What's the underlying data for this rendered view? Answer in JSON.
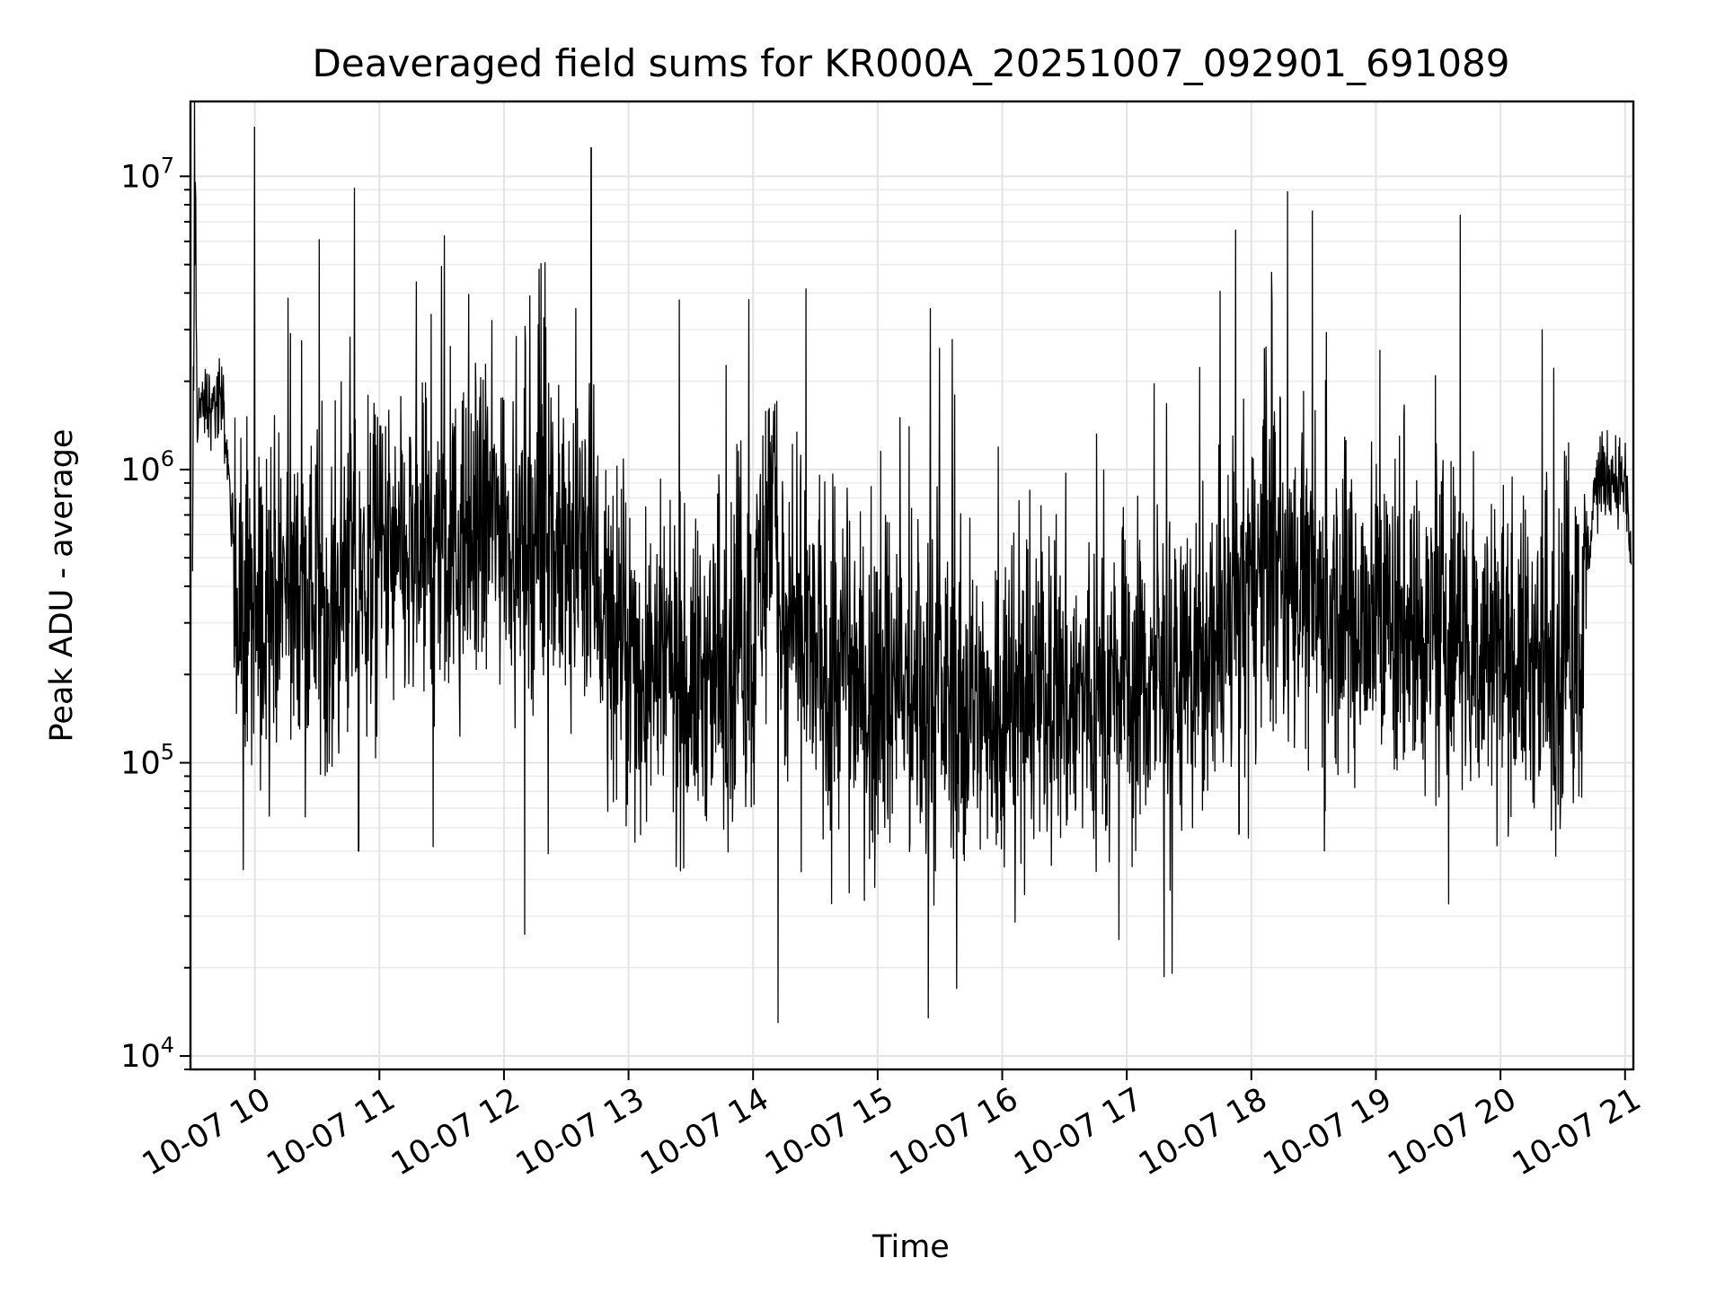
{
  "chart_data": {
    "type": "line",
    "title": "Deaveraged field sums for KR000A_20251007_092901_691089",
    "xlabel": "Time",
    "ylabel": "Peak ADU - average",
    "yscale": "log",
    "ylim": [
      9000,
      18000000
    ],
    "xlim": [
      "2025-10-07 09:29",
      "2025-10-07 21:04"
    ],
    "grid": true,
    "x_ticks": [
      "10-07 10",
      "10-07 11",
      "10-07 12",
      "10-07 13",
      "10-07 14",
      "10-07 15",
      "10-07 16",
      "10-07 17",
      "10-07 18",
      "10-07 19",
      "10-07 20",
      "10-07 21"
    ],
    "y_ticks": [
      {
        "base": "10",
        "exp": "4",
        "value": 10000
      },
      {
        "base": "10",
        "exp": "5",
        "value": 100000
      },
      {
        "base": "10",
        "exp": "6",
        "value": 1000000
      },
      {
        "base": "10",
        "exp": "7",
        "value": 10000000
      }
    ],
    "color": "#000000",
    "series": [
      {
        "x": [
          "2025-10-07 09:30",
          "2025-10-07 09:31",
          "2025-10-07 09:32",
          "2025-10-07 09:40",
          "2025-10-07 09:45",
          "2025-10-07 09:50",
          "2025-10-07 09:55",
          "2025-10-07 10:00",
          "2025-10-07 10:10",
          "2025-10-07 10:20",
          "2025-10-07 10:30",
          "2025-10-07 10:40",
          "2025-10-07 10:50",
          "2025-10-07 11:00",
          "2025-10-07 11:10",
          "2025-10-07 11:20",
          "2025-10-07 11:30",
          "2025-10-07 11:40",
          "2025-10-07 11:50",
          "2025-10-07 12:00",
          "2025-10-07 12:10",
          "2025-10-07 12:20",
          "2025-10-07 12:30",
          "2025-10-07 12:40",
          "2025-10-07 12:50",
          "2025-10-07 13:00",
          "2025-10-07 13:15",
          "2025-10-07 13:30",
          "2025-10-07 13:45",
          "2025-10-07 14:00",
          "2025-10-07 14:10",
          "2025-10-07 14:15",
          "2025-10-07 14:20",
          "2025-10-07 14:30",
          "2025-10-07 14:45",
          "2025-10-07 15:00",
          "2025-10-07 15:15",
          "2025-10-07 15:30",
          "2025-10-07 15:45",
          "2025-10-07 16:00",
          "2025-10-07 16:15",
          "2025-10-07 16:30",
          "2025-10-07 16:45",
          "2025-10-07 17:00",
          "2025-10-07 17:15",
          "2025-10-07 17:30",
          "2025-10-07 17:45",
          "2025-10-07 18:00",
          "2025-10-07 18:10",
          "2025-10-07 18:20",
          "2025-10-07 18:30",
          "2025-10-07 18:45",
          "2025-10-07 19:00",
          "2025-10-07 19:15",
          "2025-10-07 19:30",
          "2025-10-07 19:45",
          "2025-10-07 20:00",
          "2025-10-07 20:15",
          "2025-10-07 20:30",
          "2025-10-07 20:40",
          "2025-10-07 20:45",
          "2025-10-07 20:50",
          "2025-10-07 21:00",
          "2025-10-07 21:03"
        ],
        "y": [
          400000,
          10400000,
          1600000,
          1700000,
          1600000,
          500000,
          300000,
          300000,
          400000,
          380000,
          350000,
          400000,
          420000,
          500000,
          450000,
          480000,
          520000,
          500000,
          650000,
          700000,
          560000,
          600000,
          450000,
          600000,
          300000,
          220000,
          200000,
          180000,
          220000,
          260000,
          1000000,
          200000,
          250000,
          230000,
          200000,
          180000,
          160000,
          170000,
          150000,
          160000,
          180000,
          170000,
          160000,
          180000,
          190000,
          210000,
          230000,
          420000,
          480000,
          420000,
          350000,
          330000,
          320000,
          300000,
          280000,
          250000,
          230000,
          220000,
          220000,
          300000,
          850000,
          950000,
          920000,
          480000
        ]
      }
    ],
    "annotations": [
      {
        "x": "2025-10-07 12:42",
        "y": 12500000
      },
      {
        "x": "2025-10-07 12:10",
        "y": 5300000
      },
      {
        "x": "2025-10-07 13:58",
        "y": 3800000
      },
      {
        "x": "2025-10-07 18:10",
        "y": 3700000
      },
      {
        "x": "2025-10-07 20:20",
        "y": 3000000
      },
      {
        "x": "2025-10-07 14:12",
        "y": 13000
      },
      {
        "x": "2025-10-07 15:38",
        "y": 17000
      },
      {
        "x": "2025-10-07 12:10",
        "y": 26000
      },
      {
        "x": "2025-10-07 10:50",
        "y": 50000
      },
      {
        "x": "2025-10-07 19:35",
        "y": 33000
      }
    ]
  }
}
